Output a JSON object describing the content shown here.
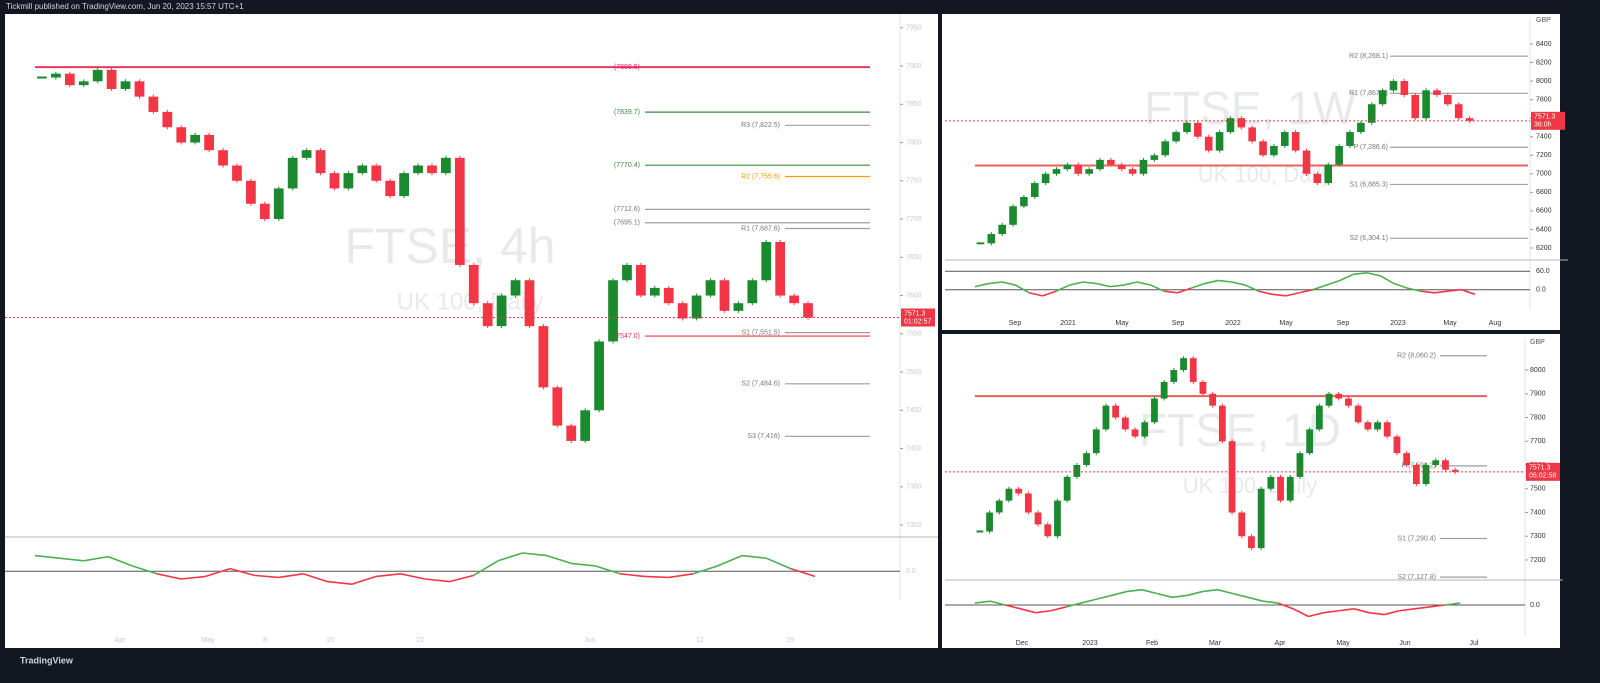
{
  "header": {
    "title": "Tickmill published on TradingView.com, Jun 20, 2023 15:57 UTC+1"
  },
  "footer": {
    "brand": "TradingView"
  },
  "chart_data": [
    {
      "type": "candlestick",
      "title": "FTSE, 4h",
      "subtitle": "UK 100, Daily",
      "values": [
        7885,
        7890,
        7875,
        7880,
        7895,
        7870,
        7880,
        7860,
        7840,
        7820,
        7800,
        7810,
        7790,
        7770,
        7750,
        7720,
        7700,
        7740,
        7780,
        7790,
        7760,
        7740,
        7760,
        7770,
        7750,
        7730,
        7760,
        7770,
        7760,
        7780,
        7640,
        7590,
        7560,
        7600,
        7620,
        7560,
        7480,
        7430,
        7410,
        7450,
        7540,
        7620,
        7640,
        7600,
        7610,
        7590,
        7570,
        7600,
        7620,
        7580,
        7590,
        7620,
        7670,
        7600,
        7590,
        7571.3
      ],
      "ylim": [
        7287,
        7968
      ],
      "yticks": [
        7300,
        7350,
        7400,
        7450,
        7500,
        7550,
        7600,
        7650,
        7700,
        7750,
        7800,
        7850,
        7900,
        7950
      ],
      "xticks": [
        "Apr",
        "May",
        "8",
        "15",
        "22",
        "Jun",
        "12",
        "19"
      ],
      "last_price": 7571.3,
      "countdown": "01:02:57",
      "poc": 7898.5,
      "levels": [
        {
          "label": "(7898.5)",
          "value": 7898.5,
          "color": "#e91e63"
        },
        {
          "label": "(7839.7)",
          "value": 7839.7,
          "color": "#388e3c"
        },
        {
          "label": "(7770.4)",
          "value": 7770.4,
          "color": "#388e3c"
        },
        {
          "label": "(7712.6)",
          "value": 7712.6,
          "color": "#9e9e9e"
        },
        {
          "label": "(7695.1)",
          "value": 7695.1,
          "color": "#9e9e9e"
        },
        {
          "label": "(7547.0)",
          "value": 7547.0,
          "color": "#f23645"
        },
        {
          "label": "R3 (7,822.5)",
          "value": 7822.5,
          "color": "#9e9e9e"
        },
        {
          "label": "R2 (7,755.6)",
          "value": 7755.6,
          "color": "#ff9800"
        },
        {
          "label": "R1 (7,687.6)",
          "value": 7687.6,
          "color": "#9e9e9e"
        },
        {
          "label": "S1 (7,551.5)",
          "value": 7551.5,
          "color": "#9e9e9e"
        },
        {
          "label": "S2 (7,484.6)",
          "value": 7484.6,
          "color": "#9e9e9e"
        },
        {
          "label": "S3 (7,416)",
          "value": 7416,
          "color": "#9e9e9e"
        }
      ],
      "oscillator": {
        "values": [
          30,
          25,
          20,
          28,
          10,
          -5,
          -15,
          -10,
          5,
          -8,
          -12,
          -5,
          -20,
          -25,
          -10,
          -5,
          -15,
          -20,
          -8,
          20,
          35,
          30,
          15,
          10,
          -5,
          -10,
          -12,
          -5,
          10,
          30,
          25,
          5,
          -10
        ],
        "ylim": [
          -40,
          60
        ],
        "yticks": [
          {
            "value": 0,
            "label": "0.0"
          }
        ]
      }
    },
    {
      "type": "candlestick",
      "title": "FTSE, 1W",
      "subtitle": "UK 100, Daily",
      "currency": "GBP",
      "values": [
        6250,
        6350,
        6450,
        6650,
        6750,
        6900,
        7000,
        7050,
        7100,
        7000,
        7050,
        7150,
        7100,
        7050,
        7000,
        7150,
        7200,
        7350,
        7450,
        7550,
        7400,
        7250,
        7450,
        7600,
        7500,
        7350,
        7200,
        7300,
        7450,
        7250,
        7000,
        6900,
        7100,
        7300,
        7450,
        7550,
        7750,
        7900,
        8000,
        7850,
        7600,
        7900,
        7850,
        7750,
        7600,
        7571.3
      ],
      "ylim": [
        6092,
        8680
      ],
      "yticks": [
        6200,
        6400,
        6600,
        6800,
        7000,
        7200,
        7400,
        7600,
        7800,
        8000,
        8200,
        8400
      ],
      "xticks": [
        "Sep",
        "2021",
        "May",
        "Sep",
        "2022",
        "May",
        "Sep",
        "2023",
        "May",
        "Aug"
      ],
      "last_price": 7571.3,
      "countdown": "36:0h",
      "poc": 7090,
      "levels": [
        {
          "label": "R2 (8,268.1)",
          "value": 8268.1,
          "color": "#9e9e9e"
        },
        {
          "label": "R1 (7,867.8)",
          "value": 7867.8,
          "color": "#9e9e9e"
        },
        {
          "label": "P (7,286.6)",
          "value": 7286.6,
          "color": "#9e9e9e"
        },
        {
          "label": "S1 (6,885.3)",
          "value": 6885.3,
          "color": "#9e9e9e"
        },
        {
          "label": "S2 (6,304.1)",
          "value": 6304.1,
          "color": "#9e9e9e"
        }
      ],
      "oscillator": {
        "values": [
          10,
          20,
          25,
          15,
          -10,
          -20,
          -5,
          15,
          25,
          20,
          10,
          15,
          25,
          15,
          -5,
          -10,
          5,
          20,
          30,
          25,
          15,
          -5,
          -15,
          -20,
          -10,
          0,
          15,
          30,
          50,
          55,
          45,
          20,
          5,
          -5,
          -10,
          -5,
          0,
          -15
        ],
        "ylim": [
          -40,
          90
        ],
        "yticks": [
          {
            "value": 60,
            "label": "60.0"
          },
          {
            "value": 0,
            "label": "0.0"
          }
        ]
      }
    },
    {
      "type": "candlestick",
      "title": "FTSE, 1D",
      "subtitle": "UK 100, Daily",
      "currency": "GBP",
      "values": [
        7320,
        7400,
        7450,
        7500,
        7480,
        7400,
        7350,
        7300,
        7450,
        7550,
        7600,
        7650,
        7750,
        7850,
        7800,
        7750,
        7720,
        7780,
        7880,
        7950,
        8000,
        8050,
        7950,
        7900,
        7850,
        7700,
        7400,
        7300,
        7250,
        7500,
        7550,
        7450,
        7550,
        7650,
        7750,
        7850,
        7900,
        7880,
        7850,
        7780,
        7750,
        7780,
        7720,
        7650,
        7600,
        7520,
        7600,
        7620,
        7580,
        7571.3
      ],
      "ylim": [
        7124,
        8135
      ],
      "yticks": [
        7200,
        7300,
        7400,
        7500,
        7600,
        7700,
        7800,
        7900,
        8000
      ],
      "xticks": [
        "Dec",
        "2023",
        "Feb",
        "Mar",
        "Apr",
        "May",
        "Jun",
        "Jul"
      ],
      "last_price": 7571.3,
      "countdown": "05:02:58",
      "poc": 7890,
      "levels": [
        {
          "label": "R2 (8,060.2)",
          "value": 8060.2,
          "color": "#9e9e9e"
        },
        {
          "label": "P (7,596.2)",
          "value": 7596.2,
          "color": "#9e9e9e"
        },
        {
          "label": "S1 (7,290.4)",
          "value": 7290.4,
          "color": "#9e9e9e"
        },
        {
          "label": "S2 (7,127.8)",
          "value": 7127.8,
          "color": "#9e9e9e"
        }
      ],
      "oscillator": {
        "values": [
          5,
          10,
          0,
          -10,
          -20,
          -15,
          -5,
          5,
          15,
          25,
          35,
          40,
          30,
          20,
          25,
          35,
          40,
          30,
          20,
          10,
          5,
          -10,
          -30,
          -20,
          -15,
          -10,
          -20,
          -25,
          -15,
          -10,
          -5,
          0,
          5
        ],
        "ylim": [
          -60,
          60
        ],
        "yticks": [
          {
            "value": 0,
            "label": "0.0"
          }
        ]
      }
    }
  ]
}
